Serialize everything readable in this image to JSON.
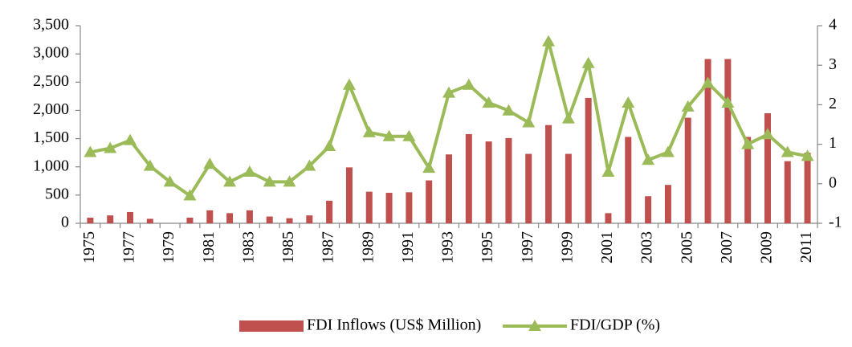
{
  "chart_data": {
    "type": "bar",
    "categories": [
      "1975",
      null,
      "1977",
      null,
      "1979",
      null,
      "1981",
      null,
      "1983",
      null,
      "1985",
      null,
      "1987",
      null,
      "1989",
      null,
      "1991",
      null,
      "1993",
      null,
      "1995",
      null,
      "1997",
      null,
      "1999",
      null,
      "2001",
      null,
      "2003",
      null,
      "2005",
      null,
      "2007",
      null,
      "2009",
      null,
      "2011"
    ],
    "series": [
      {
        "name": "FDI Inflows (US$ Million)",
        "type": "bar",
        "axis": "y",
        "color": "#c0504d",
        "values": [
          100,
          140,
          200,
          80,
          0,
          100,
          230,
          180,
          230,
          120,
          90,
          140,
          400,
          990,
          560,
          540,
          550,
          760,
          1220,
          1580,
          1450,
          1510,
          1230,
          1740,
          1230,
          2220,
          180,
          1530,
          480,
          680,
          1870,
          2910,
          2910,
          1530,
          1950,
          1100,
          1250
        ]
      },
      {
        "name": "FDI/GDP (%)",
        "type": "line",
        "axis": "y2",
        "color": "#9bbb59",
        "values": [
          0.8,
          0.9,
          1.1,
          0.45,
          0.05,
          -0.3,
          0.5,
          0.05,
          0.3,
          0.05,
          0.05,
          0.45,
          0.95,
          2.5,
          1.3,
          1.2,
          1.2,
          0.4,
          2.3,
          2.5,
          2.05,
          1.85,
          1.55,
          3.6,
          1.65,
          3.05,
          0.3,
          2.05,
          0.6,
          0.8,
          1.95,
          2.55,
          2.05,
          1.0,
          1.25,
          0.8,
          0.7
        ]
      }
    ],
    "ylim": [
      0,
      3500
    ],
    "yticks": [
      0,
      500,
      {
        "value": 1000,
        "label": "1,000"
      },
      {
        "value": 1500,
        "label": "1,500"
      },
      {
        "value": 2000,
        "label": "2,000"
      },
      {
        "value": 2500,
        "label": "2,500"
      },
      {
        "value": 3000,
        "label": "3,000"
      },
      {
        "value": 3500,
        "label": "3,500"
      }
    ],
    "y2lim": [
      -1,
      4
    ],
    "y2ticks": [
      -1,
      0,
      1,
      2,
      3,
      4
    ],
    "grid": false,
    "legend": "bottom"
  }
}
